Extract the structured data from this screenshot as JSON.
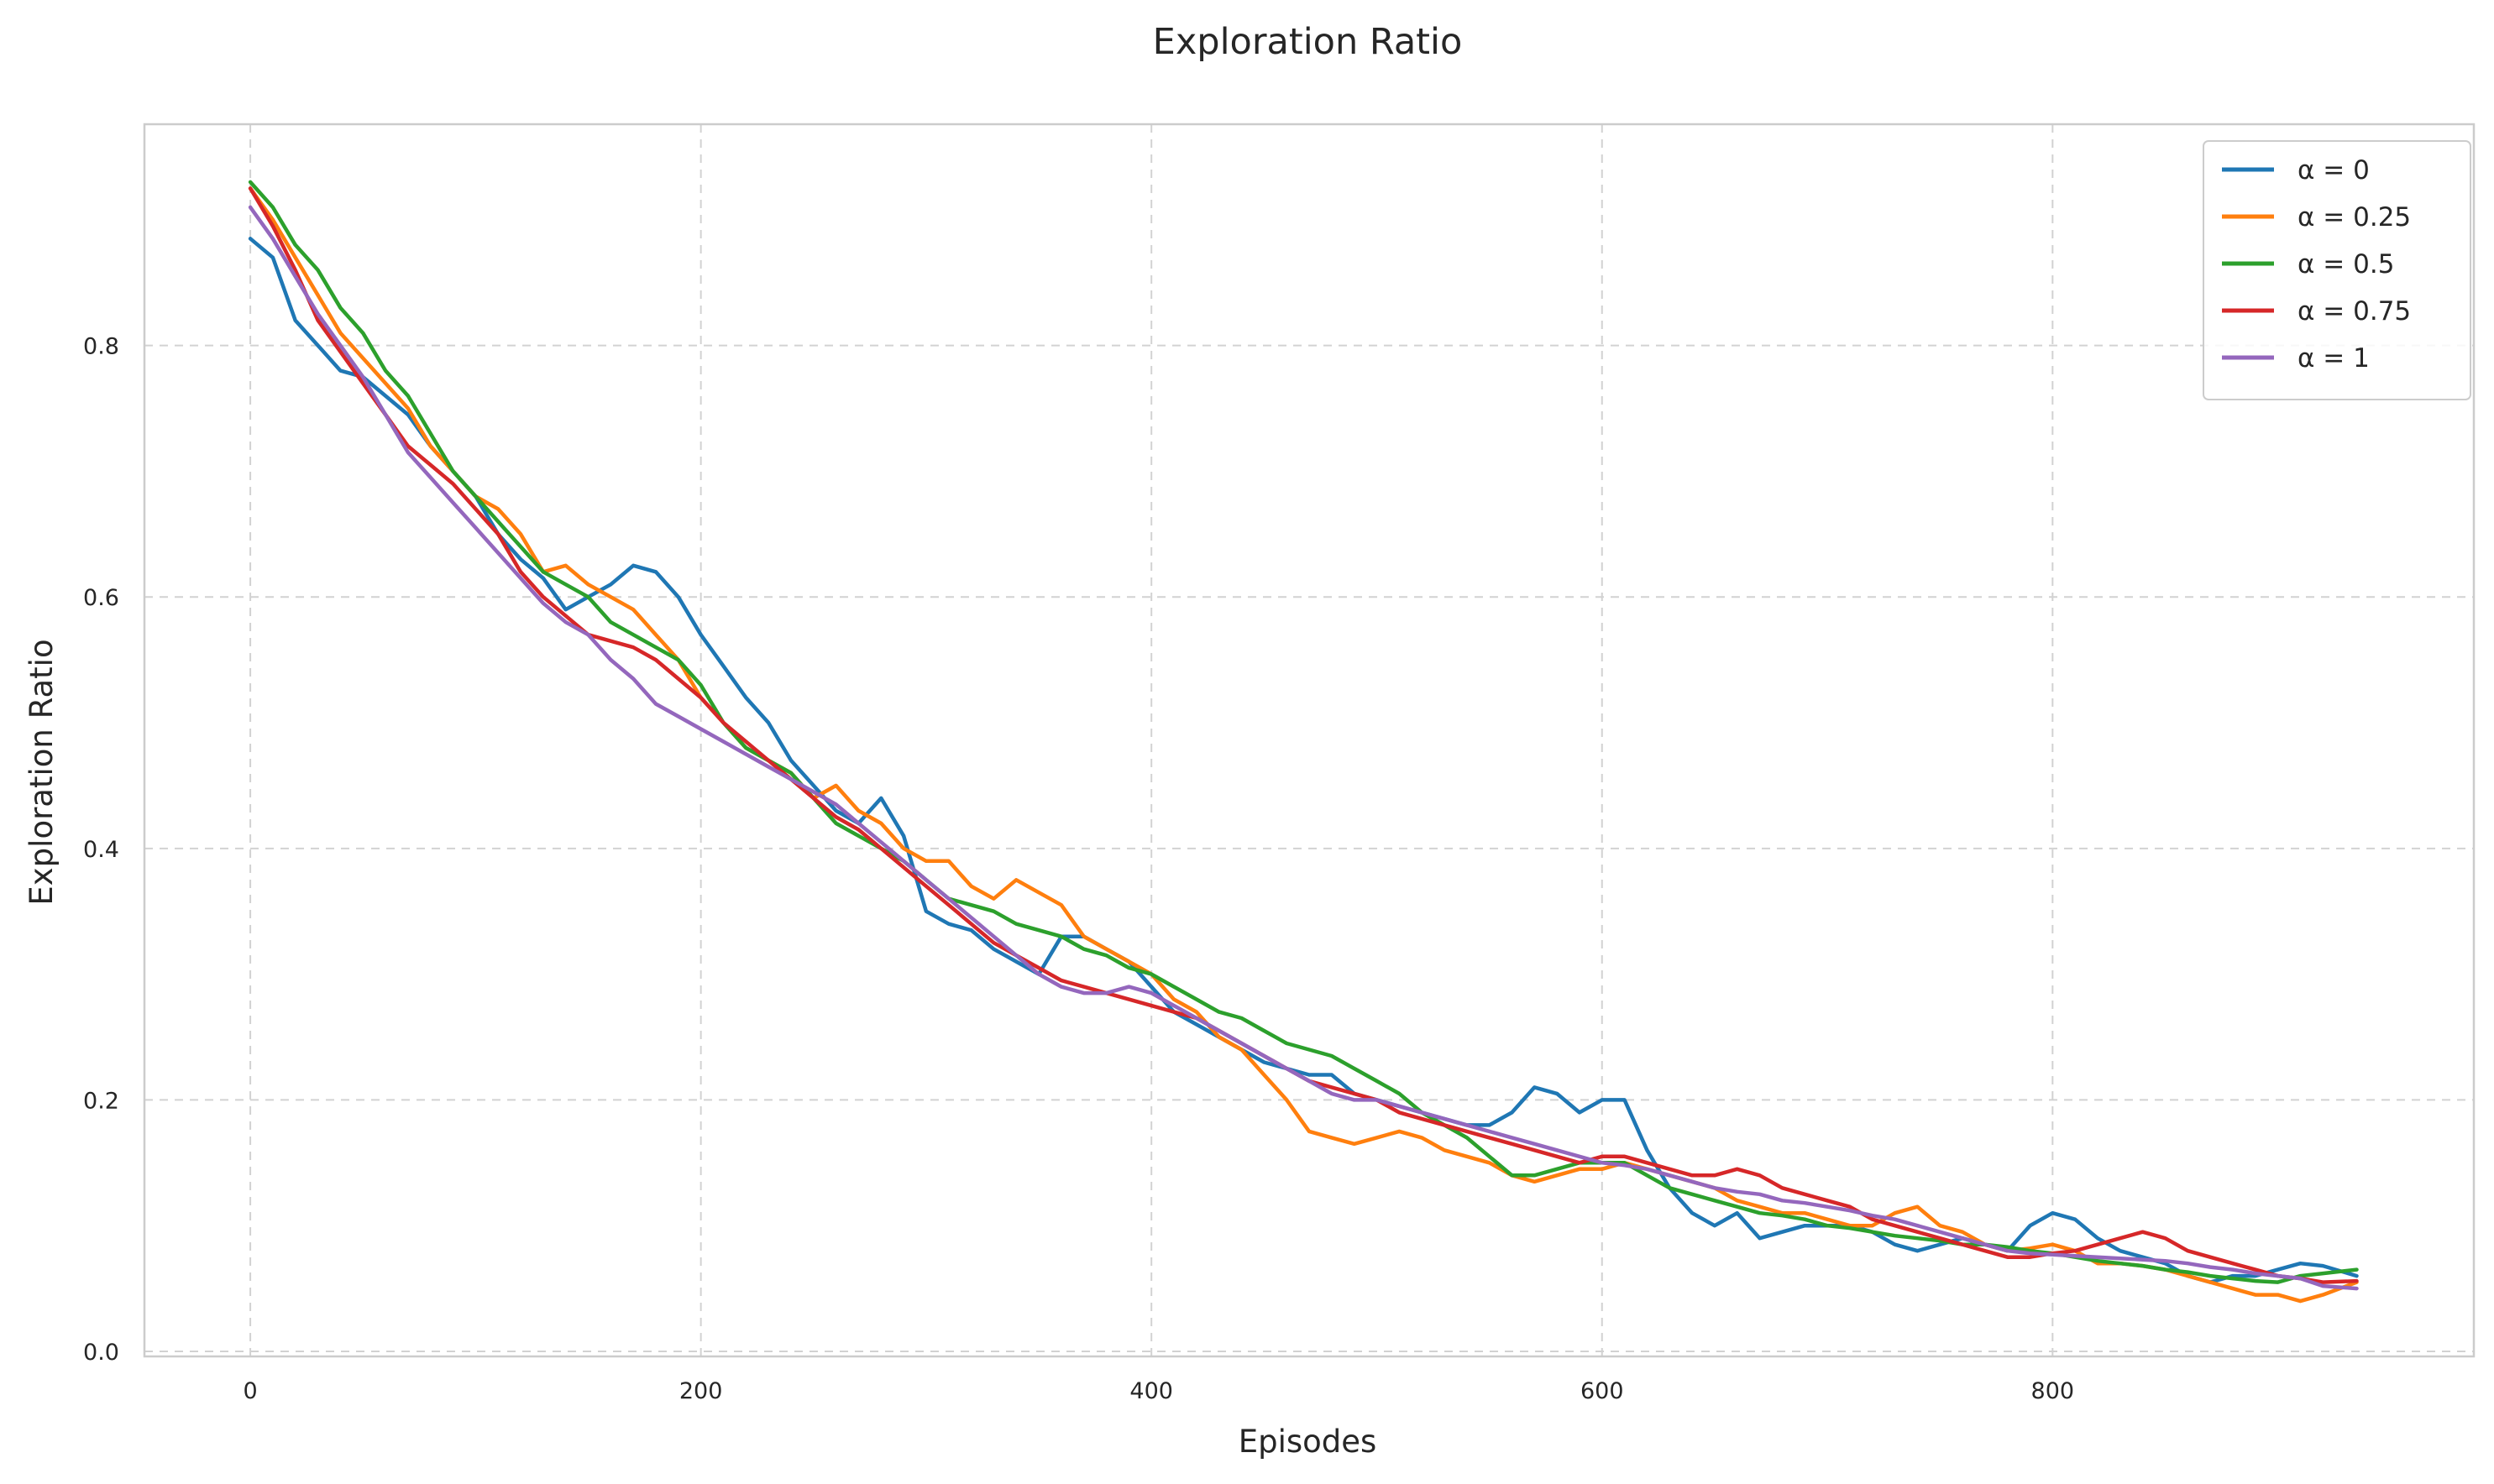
{
  "chart_data": {
    "type": "line",
    "title": "Exploration Ratio",
    "xlabel": "Episodes",
    "ylabel": "Exploration Ratio",
    "xlim": [
      -47,
      987
    ],
    "ylim": [
      -0.004,
      0.976
    ],
    "xticks": [
      0,
      200,
      400,
      600,
      800
    ],
    "yticks": [
      0.0,
      0.2,
      0.4,
      0.6,
      0.8
    ],
    "xtick_labels": [
      "0",
      "200",
      "400",
      "600",
      "800"
    ],
    "ytick_labels": [
      "0.0",
      "0.2",
      "0.4",
      "0.6",
      "0.8"
    ],
    "grid": true,
    "legend_position": "top-right",
    "series": [
      {
        "name": "α = 0",
        "color": "#1f77b4",
        "x": [
          0,
          10,
          20,
          30,
          40,
          50,
          60,
          70,
          80,
          90,
          100,
          110,
          120,
          130,
          140,
          150,
          160,
          170,
          180,
          190,
          200,
          210,
          220,
          230,
          240,
          250,
          260,
          270,
          280,
          290,
          300,
          310,
          320,
          330,
          340,
          350,
          360,
          370,
          380,
          390,
          400,
          410,
          420,
          430,
          440,
          450,
          460,
          470,
          480,
          490,
          500,
          510,
          520,
          530,
          540,
          550,
          560,
          570,
          580,
          590,
          600,
          610,
          620,
          630,
          640,
          650,
          660,
          670,
          680,
          690,
          700,
          710,
          720,
          730,
          740,
          750,
          760,
          770,
          780,
          790,
          800,
          810,
          820,
          830,
          840,
          850,
          860,
          870,
          880,
          890,
          900,
          910,
          920,
          935
        ],
        "y": [
          0.885,
          0.87,
          0.82,
          0.8,
          0.78,
          0.775,
          0.76,
          0.745,
          0.72,
          0.7,
          0.68,
          0.65,
          0.63,
          0.615,
          0.59,
          0.6,
          0.61,
          0.625,
          0.62,
          0.6,
          0.57,
          0.545,
          0.52,
          0.5,
          0.47,
          0.45,
          0.43,
          0.42,
          0.44,
          0.41,
          0.35,
          0.34,
          0.335,
          0.32,
          0.31,
          0.3,
          0.33,
          0.33,
          0.32,
          0.31,
          0.29,
          0.27,
          0.26,
          0.25,
          0.24,
          0.23,
          0.225,
          0.22,
          0.22,
          0.205,
          0.2,
          0.195,
          0.19,
          0.185,
          0.18,
          0.18,
          0.19,
          0.21,
          0.205,
          0.19,
          0.2,
          0.2,
          0.16,
          0.13,
          0.11,
          0.1,
          0.11,
          0.09,
          0.095,
          0.1,
          0.1,
          0.1,
          0.095,
          0.085,
          0.08,
          0.085,
          0.09,
          0.085,
          0.08,
          0.1,
          0.11,
          0.105,
          0.09,
          0.08,
          0.075,
          0.07,
          0.06,
          0.055,
          0.06,
          0.06,
          0.065,
          0.07,
          0.068,
          0.06
        ]
      },
      {
        "name": "α = 0.25",
        "color": "#ff7f0e",
        "x": [
          0,
          10,
          20,
          30,
          40,
          50,
          60,
          70,
          80,
          90,
          100,
          110,
          120,
          130,
          140,
          150,
          160,
          170,
          180,
          190,
          200,
          210,
          220,
          230,
          240,
          250,
          260,
          270,
          280,
          290,
          300,
          310,
          320,
          330,
          340,
          350,
          360,
          370,
          380,
          390,
          400,
          410,
          420,
          430,
          440,
          450,
          460,
          470,
          480,
          490,
          500,
          510,
          520,
          530,
          540,
          550,
          560,
          570,
          580,
          590,
          600,
          610,
          620,
          630,
          640,
          650,
          660,
          670,
          680,
          690,
          700,
          710,
          720,
          730,
          740,
          750,
          760,
          770,
          780,
          790,
          800,
          810,
          820,
          830,
          840,
          850,
          860,
          870,
          880,
          890,
          900,
          910,
          920,
          935
        ],
        "y": [
          0.925,
          0.9,
          0.87,
          0.84,
          0.81,
          0.79,
          0.77,
          0.75,
          0.72,
          0.7,
          0.68,
          0.67,
          0.65,
          0.62,
          0.625,
          0.61,
          0.6,
          0.59,
          0.57,
          0.55,
          0.52,
          0.5,
          0.48,
          0.47,
          0.46,
          0.44,
          0.45,
          0.43,
          0.42,
          0.4,
          0.39,
          0.39,
          0.37,
          0.36,
          0.375,
          0.365,
          0.355,
          0.33,
          0.32,
          0.31,
          0.3,
          0.28,
          0.27,
          0.25,
          0.24,
          0.22,
          0.2,
          0.175,
          0.17,
          0.165,
          0.17,
          0.175,
          0.17,
          0.16,
          0.155,
          0.15,
          0.14,
          0.135,
          0.14,
          0.145,
          0.145,
          0.15,
          0.145,
          0.14,
          0.135,
          0.13,
          0.12,
          0.115,
          0.11,
          0.11,
          0.105,
          0.1,
          0.1,
          0.11,
          0.115,
          0.1,
          0.095,
          0.085,
          0.08,
          0.082,
          0.085,
          0.08,
          0.07,
          0.07,
          0.068,
          0.065,
          0.06,
          0.055,
          0.05,
          0.045,
          0.045,
          0.04,
          0.045,
          0.055
        ]
      },
      {
        "name": "α = 0.5",
        "color": "#2ca02c",
        "x": [
          0,
          10,
          20,
          30,
          40,
          50,
          60,
          70,
          80,
          90,
          100,
          110,
          120,
          130,
          140,
          150,
          160,
          170,
          180,
          190,
          200,
          210,
          220,
          230,
          240,
          250,
          260,
          270,
          280,
          290,
          300,
          310,
          320,
          330,
          340,
          350,
          360,
          370,
          380,
          390,
          400,
          410,
          420,
          430,
          440,
          450,
          460,
          470,
          480,
          490,
          500,
          510,
          520,
          530,
          540,
          550,
          560,
          570,
          580,
          590,
          600,
          610,
          620,
          630,
          640,
          650,
          660,
          670,
          680,
          690,
          700,
          710,
          720,
          730,
          740,
          750,
          760,
          770,
          780,
          790,
          800,
          810,
          820,
          830,
          840,
          850,
          860,
          870,
          880,
          890,
          900,
          910,
          920,
          935
        ],
        "y": [
          0.93,
          0.91,
          0.88,
          0.86,
          0.83,
          0.81,
          0.78,
          0.76,
          0.73,
          0.7,
          0.68,
          0.66,
          0.64,
          0.62,
          0.61,
          0.6,
          0.58,
          0.57,
          0.56,
          0.55,
          0.53,
          0.5,
          0.48,
          0.47,
          0.46,
          0.44,
          0.42,
          0.41,
          0.4,
          0.39,
          0.375,
          0.36,
          0.355,
          0.35,
          0.34,
          0.335,
          0.33,
          0.32,
          0.315,
          0.305,
          0.3,
          0.29,
          0.28,
          0.27,
          0.265,
          0.255,
          0.245,
          0.24,
          0.235,
          0.225,
          0.215,
          0.205,
          0.19,
          0.18,
          0.17,
          0.155,
          0.14,
          0.14,
          0.145,
          0.15,
          0.15,
          0.15,
          0.14,
          0.13,
          0.125,
          0.12,
          0.115,
          0.11,
          0.108,
          0.105,
          0.1,
          0.098,
          0.095,
          0.092,
          0.09,
          0.088,
          0.085,
          0.085,
          0.083,
          0.08,
          0.078,
          0.075,
          0.072,
          0.07,
          0.068,
          0.065,
          0.063,
          0.06,
          0.058,
          0.056,
          0.055,
          0.06,
          0.062,
          0.065
        ]
      },
      {
        "name": "α = 0.75",
        "color": "#d62728",
        "x": [
          0,
          10,
          20,
          30,
          40,
          50,
          60,
          70,
          80,
          90,
          100,
          110,
          120,
          130,
          140,
          150,
          160,
          170,
          180,
          190,
          200,
          210,
          220,
          230,
          240,
          250,
          260,
          270,
          280,
          290,
          300,
          310,
          320,
          330,
          340,
          350,
          360,
          370,
          380,
          390,
          400,
          410,
          420,
          430,
          440,
          450,
          460,
          470,
          480,
          490,
          500,
          510,
          520,
          530,
          540,
          550,
          560,
          570,
          580,
          590,
          600,
          610,
          620,
          630,
          640,
          650,
          660,
          670,
          680,
          690,
          700,
          710,
          720,
          730,
          740,
          750,
          760,
          770,
          780,
          790,
          800,
          810,
          820,
          830,
          840,
          850,
          860,
          870,
          880,
          890,
          900,
          910,
          920,
          935
        ],
        "y": [
          0.925,
          0.895,
          0.86,
          0.82,
          0.795,
          0.77,
          0.745,
          0.72,
          0.705,
          0.69,
          0.67,
          0.65,
          0.62,
          0.6,
          0.585,
          0.57,
          0.565,
          0.56,
          0.55,
          0.535,
          0.52,
          0.5,
          0.485,
          0.47,
          0.455,
          0.44,
          0.425,
          0.415,
          0.4,
          0.385,
          0.37,
          0.355,
          0.34,
          0.325,
          0.315,
          0.305,
          0.295,
          0.29,
          0.285,
          0.28,
          0.275,
          0.27,
          0.265,
          0.255,
          0.245,
          0.235,
          0.225,
          0.215,
          0.21,
          0.205,
          0.2,
          0.19,
          0.185,
          0.18,
          0.175,
          0.17,
          0.165,
          0.16,
          0.155,
          0.15,
          0.155,
          0.155,
          0.15,
          0.145,
          0.14,
          0.14,
          0.145,
          0.14,
          0.13,
          0.125,
          0.12,
          0.115,
          0.105,
          0.1,
          0.095,
          0.09,
          0.085,
          0.08,
          0.075,
          0.075,
          0.078,
          0.08,
          0.085,
          0.09,
          0.095,
          0.09,
          0.08,
          0.075,
          0.07,
          0.065,
          0.06,
          0.058,
          0.055,
          0.056
        ]
      },
      {
        "name": "α = 1",
        "color": "#9467bd",
        "x": [
          0,
          10,
          20,
          30,
          40,
          50,
          60,
          70,
          80,
          90,
          100,
          110,
          120,
          130,
          140,
          150,
          160,
          170,
          180,
          190,
          200,
          210,
          220,
          230,
          240,
          250,
          260,
          270,
          280,
          290,
          300,
          310,
          320,
          330,
          340,
          350,
          360,
          370,
          380,
          390,
          400,
          410,
          420,
          430,
          440,
          450,
          460,
          470,
          480,
          490,
          500,
          510,
          520,
          530,
          540,
          550,
          560,
          570,
          580,
          590,
          600,
          610,
          620,
          630,
          640,
          650,
          660,
          670,
          680,
          690,
          700,
          710,
          720,
          730,
          740,
          750,
          760,
          770,
          780,
          790,
          800,
          810,
          820,
          830,
          840,
          850,
          860,
          870,
          880,
          890,
          900,
          910,
          920,
          935
        ],
        "y": [
          0.91,
          0.885,
          0.855,
          0.825,
          0.8,
          0.775,
          0.745,
          0.715,
          0.695,
          0.675,
          0.655,
          0.635,
          0.615,
          0.595,
          0.58,
          0.57,
          0.55,
          0.535,
          0.515,
          0.505,
          0.495,
          0.485,
          0.475,
          0.465,
          0.455,
          0.445,
          0.435,
          0.42,
          0.405,
          0.39,
          0.375,
          0.36,
          0.345,
          0.33,
          0.315,
          0.3,
          0.29,
          0.285,
          0.285,
          0.29,
          0.285,
          0.275,
          0.265,
          0.255,
          0.245,
          0.235,
          0.225,
          0.215,
          0.205,
          0.2,
          0.2,
          0.195,
          0.19,
          0.185,
          0.18,
          0.175,
          0.17,
          0.165,
          0.16,
          0.155,
          0.15,
          0.148,
          0.145,
          0.14,
          0.135,
          0.13,
          0.127,
          0.125,
          0.12,
          0.118,
          0.115,
          0.112,
          0.108,
          0.105,
          0.1,
          0.095,
          0.09,
          0.085,
          0.08,
          0.078,
          0.077,
          0.076,
          0.075,
          0.074,
          0.073,
          0.072,
          0.07,
          0.067,
          0.065,
          0.062,
          0.06,
          0.058,
          0.052,
          0.05
        ]
      }
    ]
  }
}
